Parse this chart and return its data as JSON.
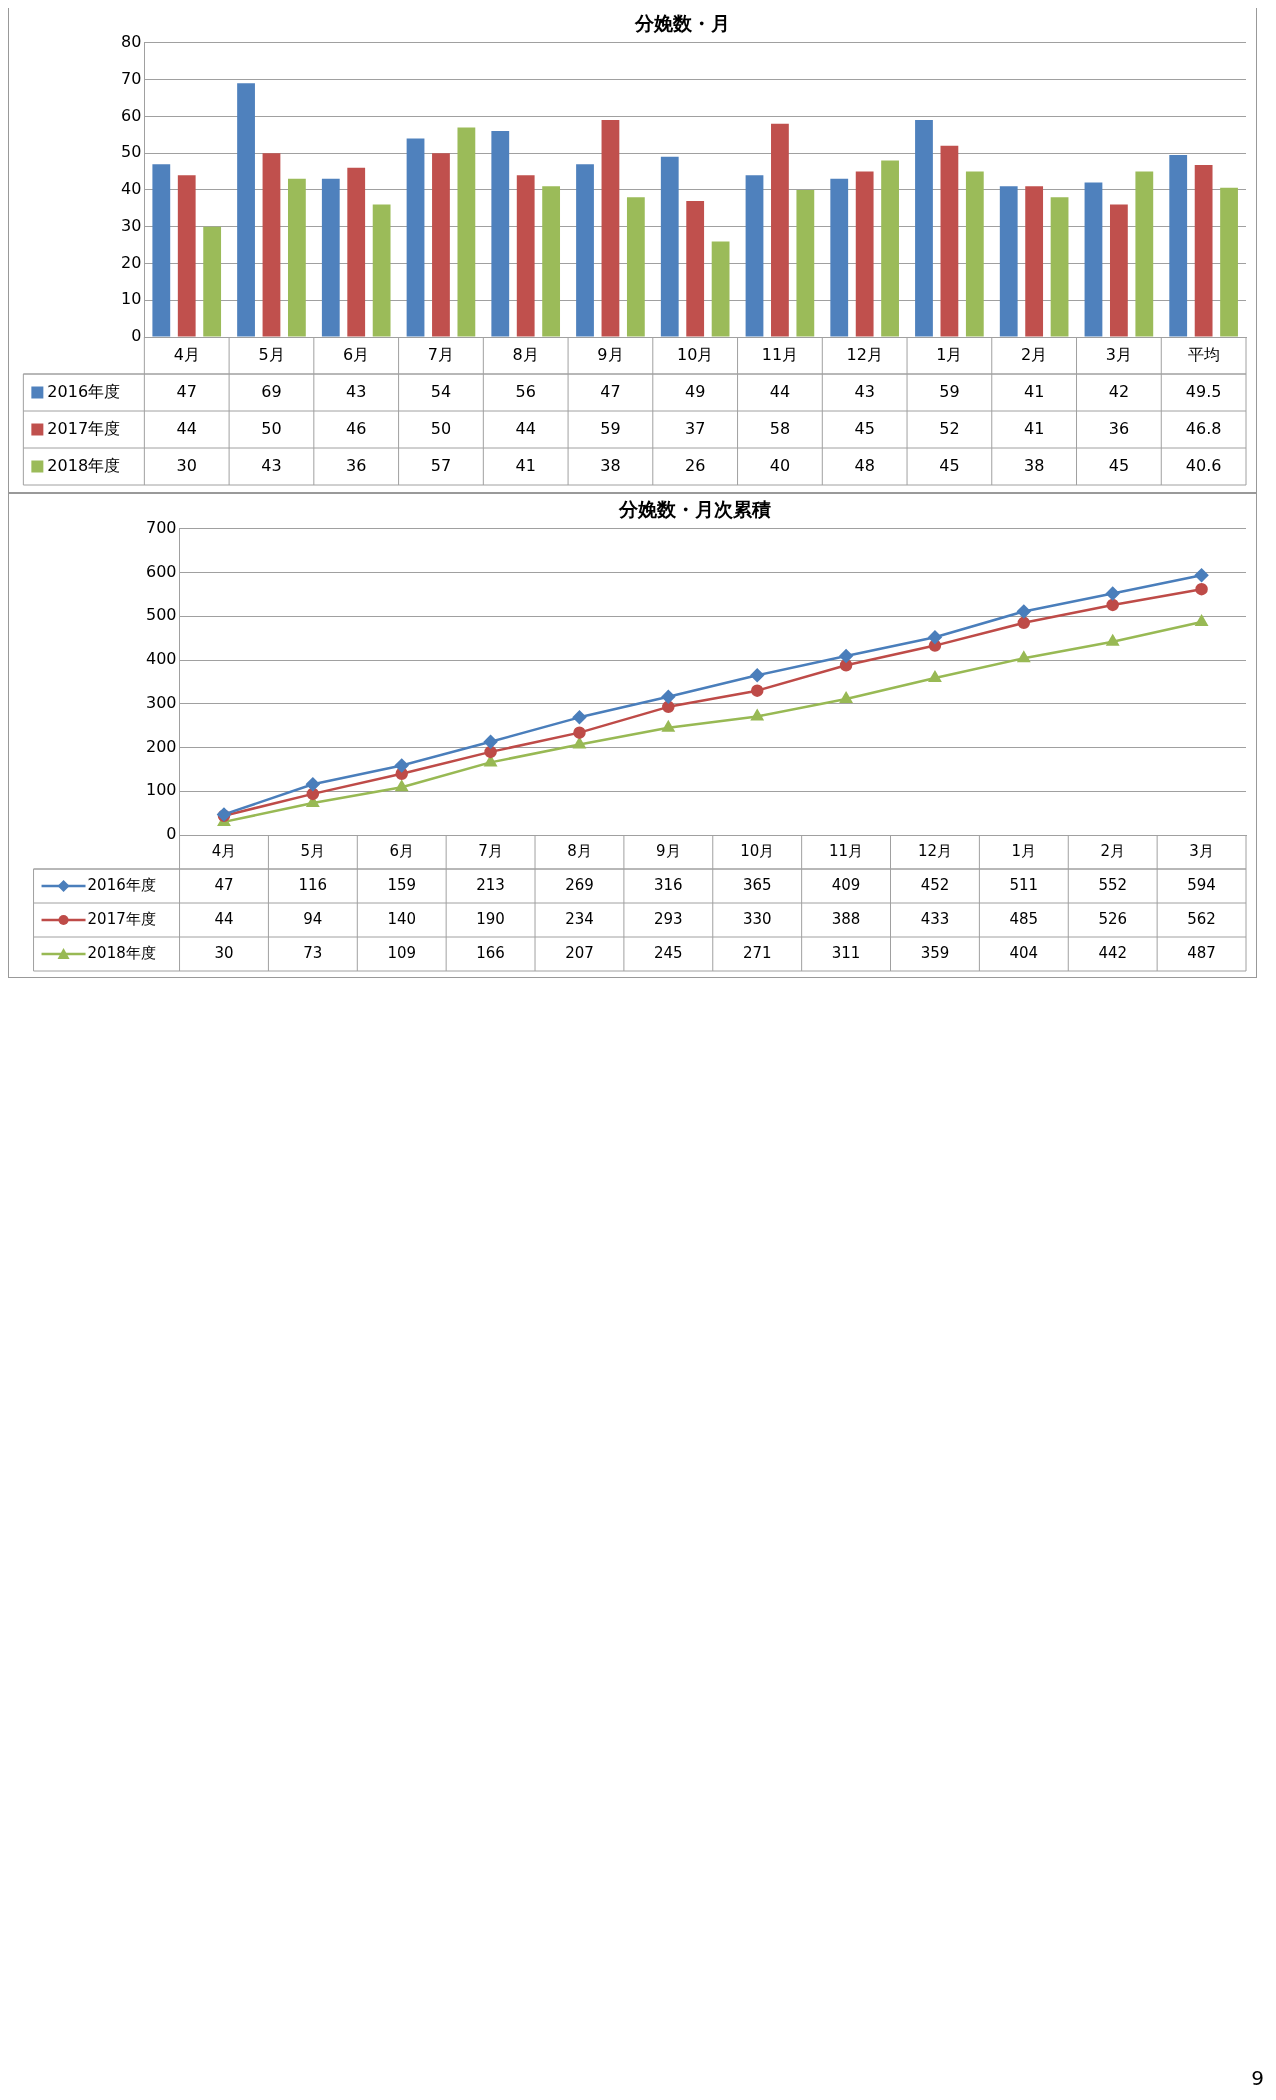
{
  "chart_data": [
    {
      "type": "bar",
      "title": "分娩数・月",
      "categories": [
        "4月",
        "5月",
        "6月",
        "7月",
        "8月",
        "9月",
        "10月",
        "11月",
        "12月",
        "1月",
        "2月",
        "3月",
        "平均"
      ],
      "series": [
        {
          "name": "2016年度",
          "color": "#4f81bd",
          "values": [
            47,
            69,
            43,
            54,
            56,
            47,
            49,
            44,
            43,
            59,
            41,
            42,
            49.5
          ]
        },
        {
          "name": "2017年度",
          "color": "#c0504d",
          "values": [
            44,
            50,
            46,
            50,
            44,
            59,
            37,
            58,
            45,
            52,
            41,
            36,
            46.8
          ]
        },
        {
          "name": "2018年度",
          "color": "#9bbb59",
          "values": [
            30,
            43,
            36,
            57,
            41,
            38,
            26,
            40,
            48,
            45,
            38,
            45,
            40.6
          ]
        }
      ],
      "ylim": [
        0,
        80
      ],
      "yticks": [
        0,
        10,
        20,
        30,
        40,
        50,
        60,
        70,
        80
      ],
      "grid": "y",
      "legend": "bottom left",
      "data_labels": true
    },
    {
      "type": "line",
      "title": "分娩数・月次累積",
      "categories": [
        "4月",
        "5月",
        "6月",
        "7月",
        "8月",
        "9月",
        "10月",
        "11月",
        "12月",
        "1月",
        "2月",
        "3月"
      ],
      "series": [
        {
          "name": "2016年度",
          "color": "#4a7ebb",
          "marker": "diamond",
          "values": [
            47,
            116,
            159,
            213,
            269,
            316,
            365,
            409,
            452,
            511,
            552,
            594
          ]
        },
        {
          "name": "2017年度",
          "color": "#be4b48",
          "marker": "circle",
          "values": [
            44,
            94,
            140,
            190,
            234,
            293,
            330,
            388,
            433,
            485,
            526,
            562
          ]
        },
        {
          "name": "2018年度",
          "color": "#98b954",
          "marker": "triangle",
          "values": [
            30,
            73,
            109,
            166,
            207,
            245,
            271,
            311,
            359,
            404,
            442,
            487
          ]
        }
      ],
      "ylim": [
        0,
        700
      ],
      "yticks": [
        0,
        100,
        200,
        300,
        400,
        500,
        600,
        700
      ],
      "grid": "y",
      "legend": "bottom left",
      "line_style": "solid",
      "data_labels": true,
      "annotations": [
        "9"
      ]
    }
  ]
}
